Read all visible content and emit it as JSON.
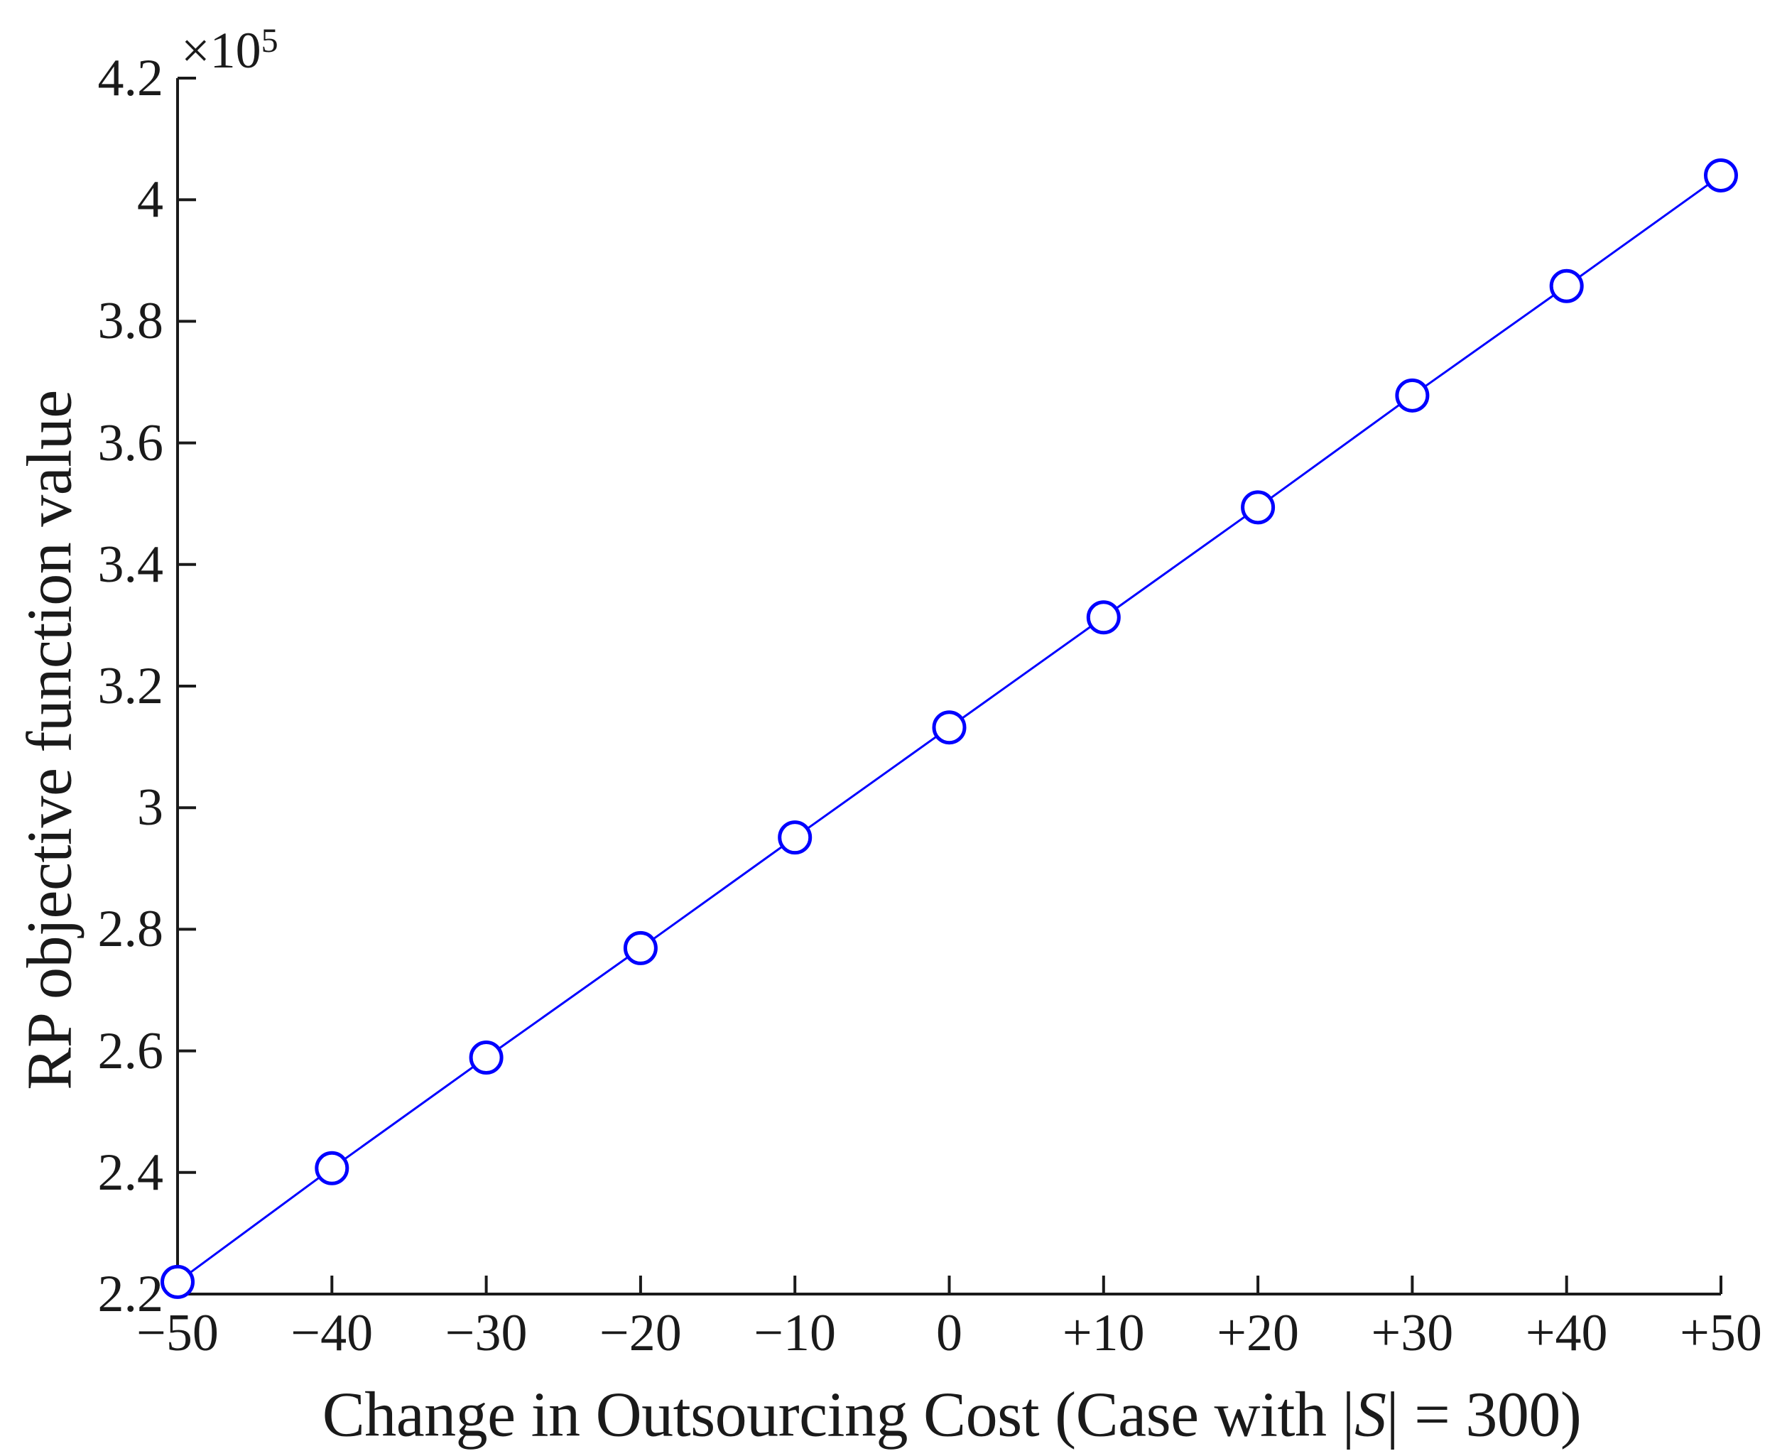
{
  "figure": {
    "background": "#ffffff",
    "axis_color": "#1a1a1a",
    "text_color": "#1a1a1a"
  },
  "chart_data": {
    "type": "line",
    "title": "",
    "xlabel": "Change in Outsourcing Cost (Case with |S| = 300)",
    "xlabel_parts": {
      "prefix": "Change in Outsourcing Cost (Case with |",
      "set_symbol": "S",
      "suffix": "| = 300)"
    },
    "ylabel": "RP objective function value",
    "x": [
      -50,
      -40,
      -30,
      -20,
      -10,
      0,
      10,
      20,
      30,
      40,
      50
    ],
    "series": [
      {
        "name": "RP objective function value",
        "values": [
          222000,
          240700,
          258900,
          276900,
          295100,
          313200,
          331300,
          349400,
          367800,
          385800,
          404000
        ],
        "values_e5": [
          2.22,
          2.407,
          2.589,
          2.769,
          2.951,
          3.132,
          3.313,
          3.494,
          3.678,
          3.858,
          4.04
        ],
        "line_color": "#0000ff",
        "marker": "open-circle",
        "marker_fill": "#ffffff"
      }
    ],
    "xlim": [
      -50,
      50
    ],
    "ylim_e5": [
      2.2,
      4.2
    ],
    "y_axis_exponent": {
      "base": "×10",
      "exp": "5"
    },
    "x_ticks": [
      -50,
      -40,
      -30,
      -20,
      -10,
      0,
      10,
      20,
      30,
      40,
      50
    ],
    "x_tick_labels": [
      "−50",
      "−40",
      "−30",
      "−20",
      "−10",
      "0",
      "+10",
      "+20",
      "+30",
      "+40",
      "+50"
    ],
    "y_ticks": [
      2.2,
      2.4,
      2.6,
      2.8,
      3.0,
      3.2,
      3.4,
      3.6,
      3.8,
      4.0,
      4.2
    ],
    "y_tick_labels": [
      "2.2",
      "2.4",
      "2.6",
      "2.8",
      "3",
      "3.2",
      "3.4",
      "3.6",
      "3.8",
      "4",
      "4.2"
    ],
    "grid": false,
    "legend": null
  }
}
